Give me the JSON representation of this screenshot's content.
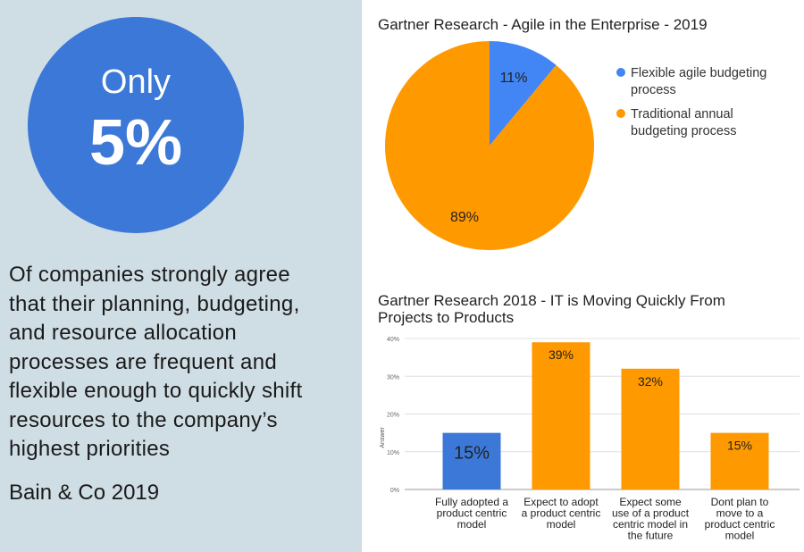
{
  "left_panel": {
    "circle_top": "Only",
    "circle_value": "5%",
    "statement_lines": [
      "Of companies strongly agree",
      "that their planning, budgeting,",
      "and resource allocation",
      "processes are frequent and",
      "flexible enough to quickly shift",
      "resources to the company’s",
      "highest priorities"
    ],
    "source": "Bain & Co 2019"
  },
  "chart_data": [
    {
      "type": "pie",
      "title": "Gartner Research - Agile in the Enterprise - 2019",
      "labels": [
        "Flexible agile budgeting process",
        "Traditional annual budgeting process"
      ],
      "legend_lines": [
        [
          "Flexible agile budgeting",
          "process"
        ],
        [
          "Traditional annual",
          "budgeting process"
        ]
      ],
      "values": [
        11,
        89
      ],
      "data_labels": [
        "11%",
        "89%"
      ],
      "colors": [
        "#4285f4",
        "#ff9900"
      ],
      "legend": "right"
    },
    {
      "type": "bar",
      "title_lines": [
        "Gartner Research 2018 - IT is Moving Quickly From",
        "Projects to Products"
      ],
      "categories": [
        [
          "Fully adopted a",
          "product centric",
          "model"
        ],
        [
          "Expect to adopt",
          "a product centric",
          "model"
        ],
        [
          "Expect some",
          "use of a product",
          "centric model in",
          "the future"
        ],
        [
          "Dont plan to",
          "move to a",
          "product centric",
          "model"
        ]
      ],
      "values": [
        15,
        39,
        32,
        15
      ],
      "data_labels": [
        "15%",
        "39%",
        "32%",
        "15%"
      ],
      "colors": [
        "#3c78d8",
        "#ff9900",
        "#ff9900",
        "#ff9900"
      ],
      "ylabel": "Answer",
      "yticks": [
        "0%",
        "10%",
        "20%",
        "30%",
        "40%"
      ],
      "ylim": [
        0,
        40
      ],
      "grid": true
    }
  ]
}
